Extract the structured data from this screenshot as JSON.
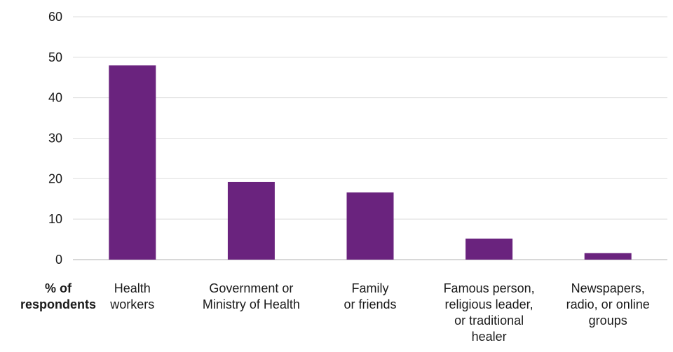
{
  "chart_data": {
    "type": "bar",
    "categories": [
      [
        "Health",
        "workers"
      ],
      [
        "Government or",
        "Ministry of Health"
      ],
      [
        "Family",
        "or friends"
      ],
      [
        "Famous person,",
        "religious leader,",
        "or traditional",
        "healer"
      ],
      [
        "Newspapers,",
        "radio, or online",
        "groups"
      ]
    ],
    "values": [
      48,
      19.2,
      16.6,
      5.2,
      1.6
    ],
    "ylabel": [
      "% of",
      "respondents"
    ],
    "ylim": [
      0,
      60
    ],
    "yticks": [
      0,
      10,
      20,
      30,
      40,
      50,
      60
    ],
    "grid": true,
    "bar_color": "#6a237e",
    "grid_color": "#dedede",
    "axis_color": "#b0b0b0"
  }
}
